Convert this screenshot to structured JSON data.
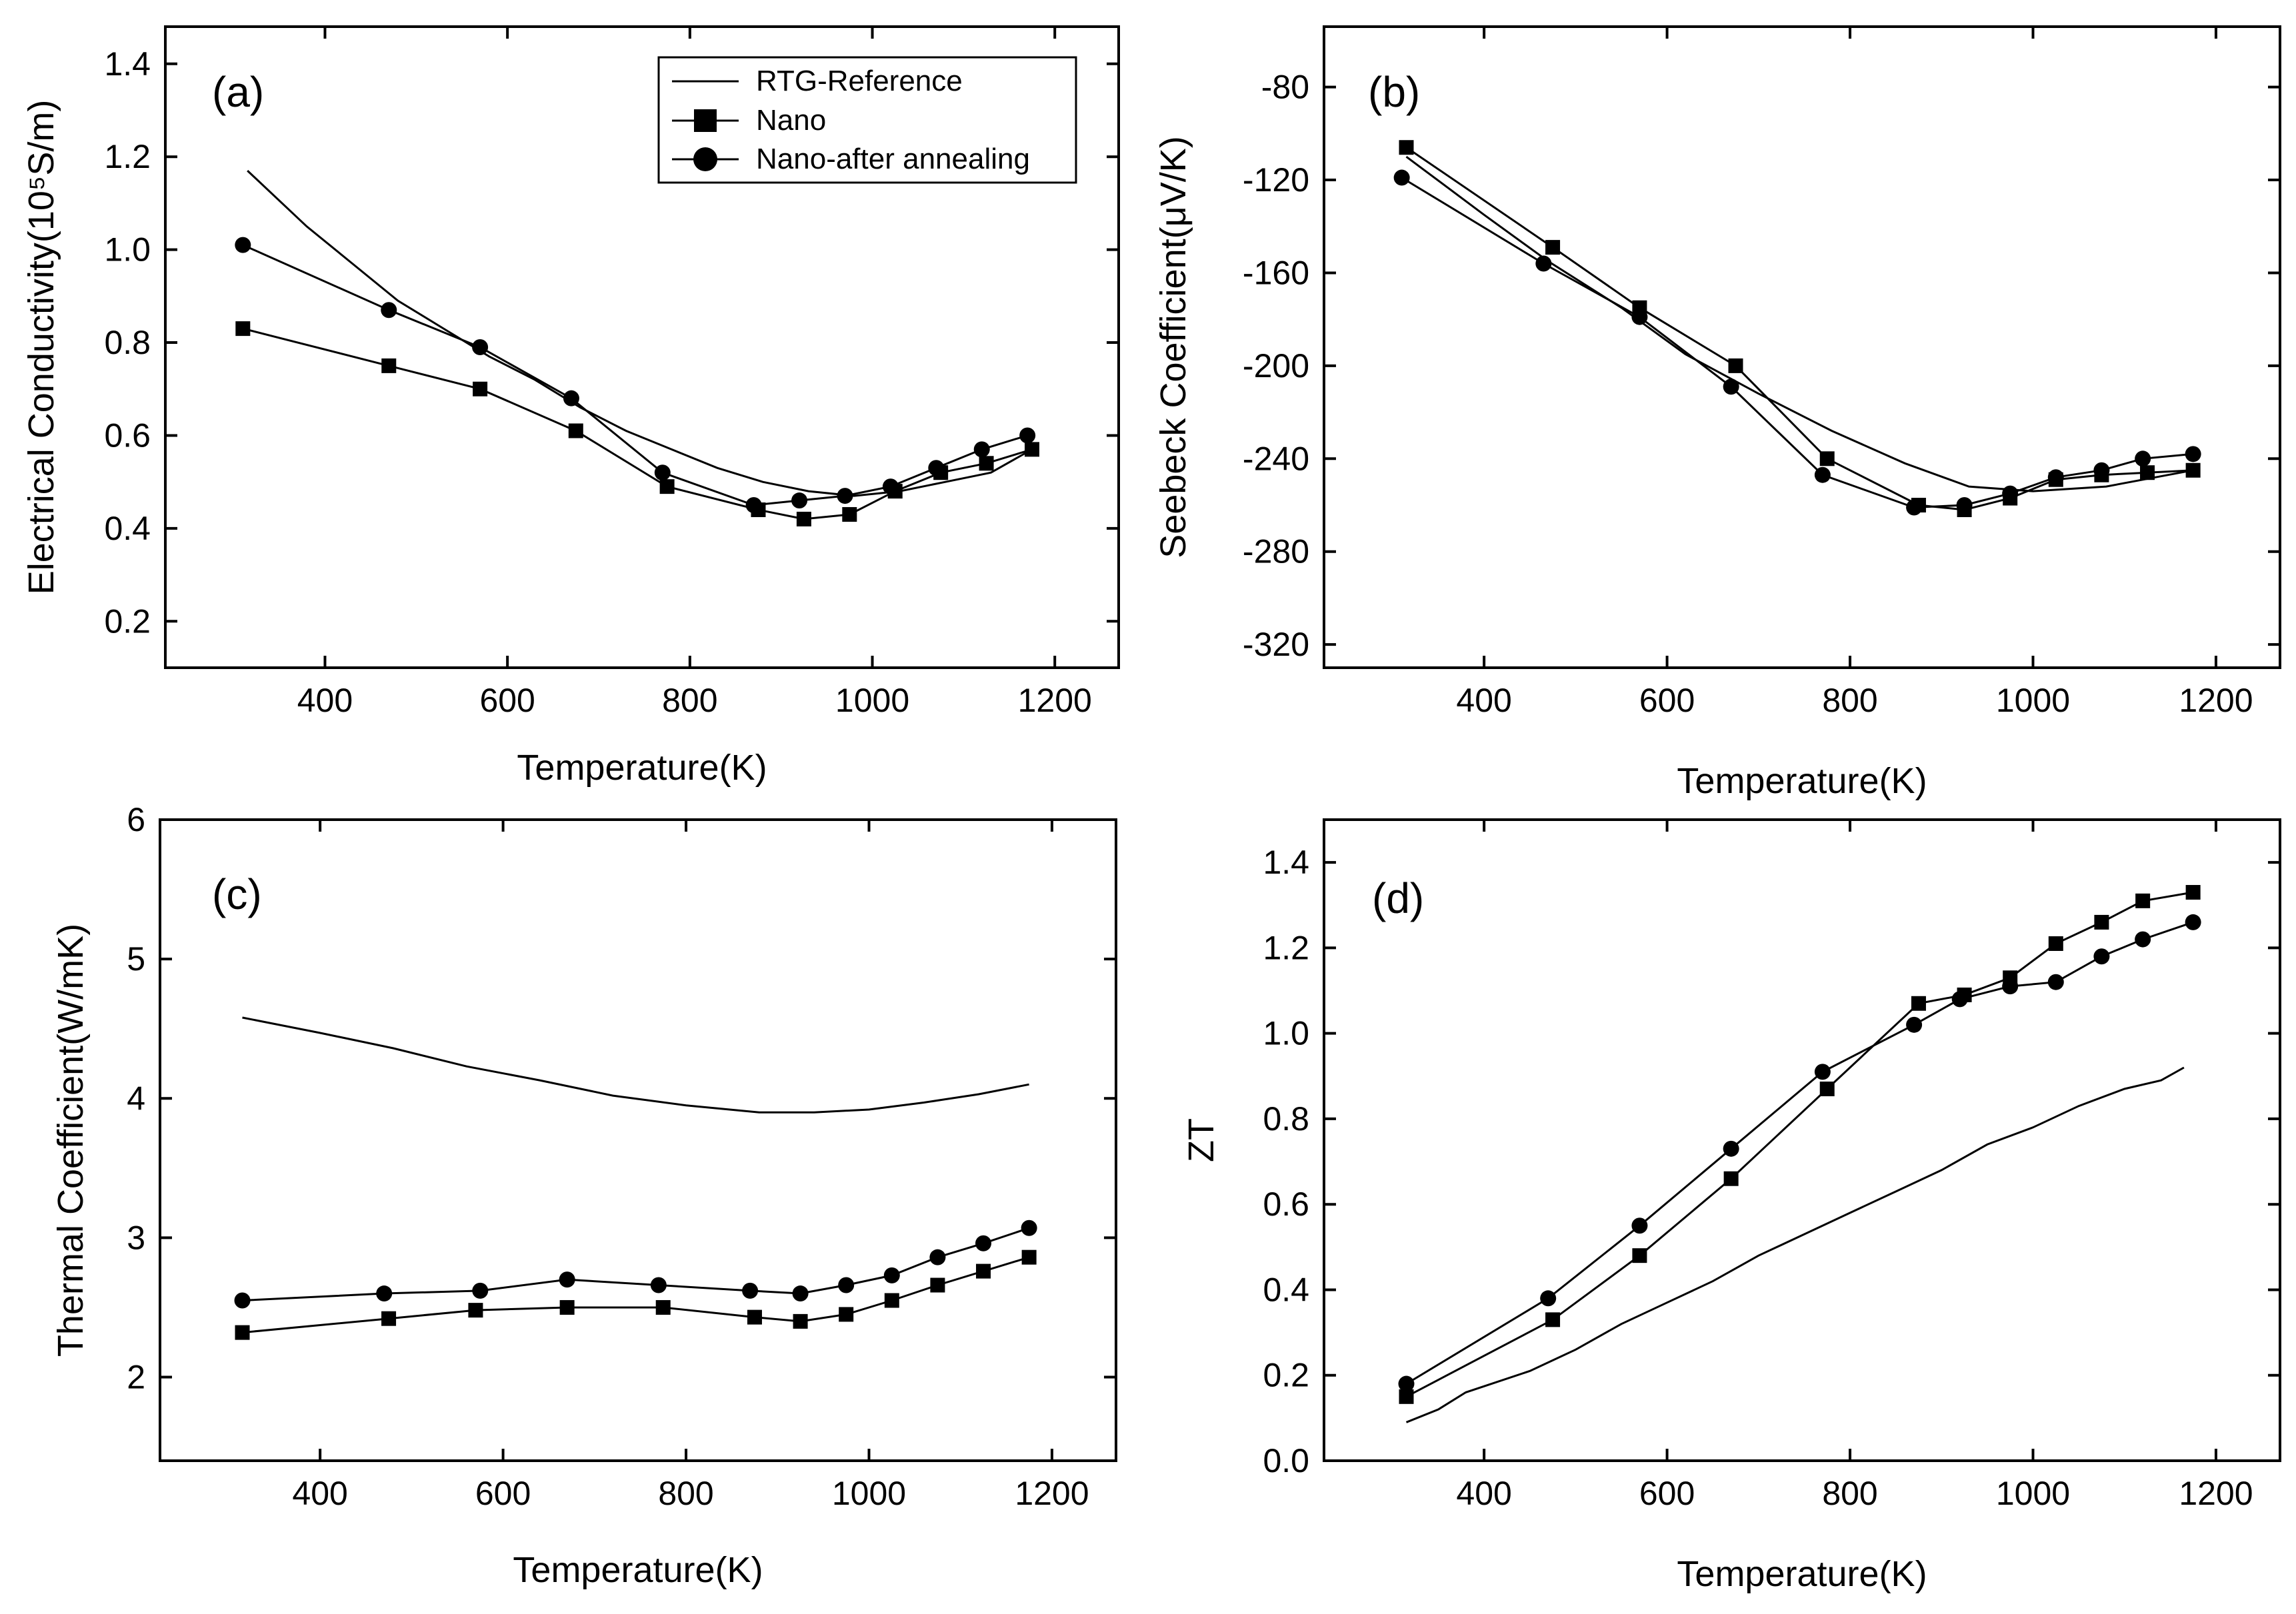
{
  "legend": {
    "entries": [
      {
        "series": "ref",
        "label": "RTG-Reference"
      },
      {
        "series": "nano",
        "label": "Nano"
      },
      {
        "series": "anneal",
        "label": "Nano-after annealing"
      }
    ]
  },
  "chart_data": [
    {
      "id": "a",
      "type": "line",
      "panel_label": "(a)",
      "title": "",
      "xlabel": "Temperature(K)",
      "ylabel": "Electrical Conductivity(10⁵S/m)",
      "xlim": [
        225,
        1270
      ],
      "ylim": [
        0.1,
        1.48
      ],
      "xticks": [
        400,
        600,
        800,
        1000,
        1200
      ],
      "yticks": [
        0.2,
        0.4,
        0.6,
        0.8,
        1.0,
        1.2,
        1.4
      ],
      "ytick_labels": [
        "0.2",
        "0.4",
        "0.6",
        "0.8",
        "1.0",
        "1.2",
        "1.4"
      ],
      "legend_position": "top-right",
      "series": [
        {
          "id": "ref",
          "name": "RTG-Reference",
          "marker": "none",
          "x": [
            315,
            380,
            430,
            480,
            530,
            580,
            630,
            680,
            730,
            780,
            830,
            880,
            930,
            980,
            1030,
            1080,
            1130,
            1175
          ],
          "y": [
            1.17,
            1.05,
            0.97,
            0.89,
            0.83,
            0.77,
            0.72,
            0.66,
            0.61,
            0.57,
            0.53,
            0.5,
            0.48,
            0.47,
            0.48,
            0.5,
            0.52,
            0.57
          ]
        },
        {
          "id": "nano",
          "name": "Nano",
          "marker": "square",
          "x": [
            310,
            470,
            570,
            675,
            775,
            875,
            925,
            975,
            1025,
            1075,
            1125,
            1175
          ],
          "y": [
            0.83,
            0.75,
            0.7,
            0.61,
            0.49,
            0.44,
            0.42,
            0.43,
            0.48,
            0.52,
            0.54,
            0.57
          ]
        },
        {
          "id": "anneal",
          "name": "Nano-after annealing",
          "marker": "circle",
          "x": [
            310,
            470,
            570,
            670,
            770,
            870,
            920,
            970,
            1020,
            1070,
            1120,
            1170
          ],
          "y": [
            1.01,
            0.87,
            0.79,
            0.68,
            0.52,
            0.45,
            0.46,
            0.47,
            0.49,
            0.53,
            0.57,
            0.6
          ]
        }
      ]
    },
    {
      "id": "b",
      "type": "line",
      "panel_label": "(b)",
      "title": "",
      "xlabel": "Temperature(K)",
      "ylabel": "Seebeck Coefficient(μV/K)",
      "xlim": [
        225,
        1270
      ],
      "ylim": [
        -330,
        -54
      ],
      "xticks": [
        400,
        600,
        800,
        1000,
        1200
      ],
      "yticks": [
        -320,
        -280,
        -240,
        -200,
        -160,
        -120,
        -80
      ],
      "ytick_labels": [
        "-320",
        "-280",
        "-240",
        "-200",
        "-160",
        "-120",
        "-80"
      ],
      "series": [
        {
          "id": "ref",
          "name": "RTG-Reference",
          "marker": "none",
          "x": [
            315,
            400,
            470,
            550,
            620,
            700,
            780,
            860,
            930,
            1000,
            1080,
            1175
          ],
          "y": [
            -110,
            -135,
            -155,
            -175,
            -195,
            -212,
            -228,
            -242,
            -252,
            -254,
            -252,
            -245
          ]
        },
        {
          "id": "nano",
          "name": "Nano",
          "marker": "square",
          "x": [
            315,
            475,
            570,
            675,
            775,
            875,
            925,
            975,
            1025,
            1075,
            1125,
            1175
          ],
          "y": [
            -106,
            -149,
            -175,
            -200,
            -240,
            -260,
            -262,
            -257,
            -249,
            -247,
            -246,
            -245
          ]
        },
        {
          "id": "anneal",
          "name": "Nano-after annealing",
          "marker": "circle",
          "x": [
            310,
            465,
            570,
            670,
            770,
            870,
            925,
            975,
            1025,
            1075,
            1120,
            1175
          ],
          "y": [
            -119,
            -156,
            -179,
            -209,
            -247,
            -261,
            -260,
            -255,
            -248,
            -245,
            -240,
            -238
          ]
        }
      ]
    },
    {
      "id": "c",
      "type": "line",
      "panel_label": "(c)",
      "title": "",
      "xlabel": "Temperature(K)",
      "ylabel": "Thermal Coefficient(W/mK)",
      "xlim": [
        225,
        1270
      ],
      "ylim": [
        1.4,
        6
      ],
      "xticks": [
        400,
        600,
        800,
        1000,
        1200
      ],
      "yticks": [
        2,
        3,
        4,
        5,
        6
      ],
      "ytick_labels": [
        "2",
        "3",
        "4",
        "5",
        "6"
      ],
      "series": [
        {
          "id": "ref",
          "name": "RTG-Reference",
          "marker": "none",
          "x": [
            315,
            400,
            480,
            560,
            640,
            720,
            800,
            880,
            940,
            1000,
            1060,
            1120,
            1175
          ],
          "y": [
            4.58,
            4.47,
            4.36,
            4.23,
            4.13,
            4.02,
            3.95,
            3.9,
            3.9,
            3.92,
            3.97,
            4.03,
            4.1
          ]
        },
        {
          "id": "nano",
          "name": "Nano",
          "marker": "square",
          "x": [
            315,
            475,
            570,
            670,
            775,
            875,
            925,
            975,
            1025,
            1075,
            1125,
            1175
          ],
          "y": [
            2.32,
            2.42,
            2.48,
            2.5,
            2.5,
            2.43,
            2.4,
            2.45,
            2.55,
            2.66,
            2.76,
            2.86
          ]
        },
        {
          "id": "anneal",
          "name": "Nano-after annealing",
          "marker": "circle",
          "x": [
            315,
            470,
            575,
            670,
            770,
            870,
            925,
            975,
            1025,
            1075,
            1125,
            1175
          ],
          "y": [
            2.55,
            2.6,
            2.62,
            2.7,
            2.66,
            2.62,
            2.6,
            2.66,
            2.73,
            2.86,
            2.96,
            3.07
          ]
        }
      ]
    },
    {
      "id": "d",
      "type": "line",
      "panel_label": "(d)",
      "title": "",
      "xlabel": "Temperature(K)",
      "ylabel": "ZT",
      "xlim": [
        225,
        1270
      ],
      "ylim": [
        0,
        1.5
      ],
      "xticks": [
        400,
        600,
        800,
        1000,
        1200
      ],
      "yticks": [
        0.0,
        0.2,
        0.4,
        0.6,
        0.8,
        1.0,
        1.2,
        1.4
      ],
      "ytick_labels": [
        "0.0",
        "0.2",
        "0.4",
        "0.6",
        "0.8",
        "1.0",
        "1.2",
        "1.4"
      ],
      "series": [
        {
          "id": "ref",
          "name": "RTG-Reference",
          "marker": "none",
          "x": [
            315,
            350,
            380,
            450,
            500,
            550,
            600,
            650,
            700,
            750,
            800,
            850,
            900,
            950,
            1000,
            1050,
            1100,
            1140,
            1165
          ],
          "y": [
            0.09,
            0.12,
            0.16,
            0.21,
            0.26,
            0.32,
            0.37,
            0.42,
            0.48,
            0.53,
            0.58,
            0.63,
            0.68,
            0.74,
            0.78,
            0.83,
            0.87,
            0.89,
            0.92
          ]
        },
        {
          "id": "nano",
          "name": "Nano",
          "marker": "square",
          "x": [
            315,
            475,
            570,
            670,
            775,
            875,
            925,
            975,
            1025,
            1075,
            1120,
            1175
          ],
          "y": [
            0.15,
            0.33,
            0.48,
            0.66,
            0.87,
            1.07,
            1.09,
            1.13,
            1.21,
            1.26,
            1.31,
            1.33
          ]
        },
        {
          "id": "anneal",
          "name": "Nano-after annealing",
          "marker": "circle",
          "x": [
            315,
            470,
            570,
            670,
            770,
            870,
            920,
            975,
            1025,
            1075,
            1120,
            1175
          ],
          "y": [
            0.18,
            0.38,
            0.55,
            0.73,
            0.91,
            1.02,
            1.08,
            1.11,
            1.12,
            1.18,
            1.22,
            1.26
          ]
        }
      ]
    }
  ]
}
